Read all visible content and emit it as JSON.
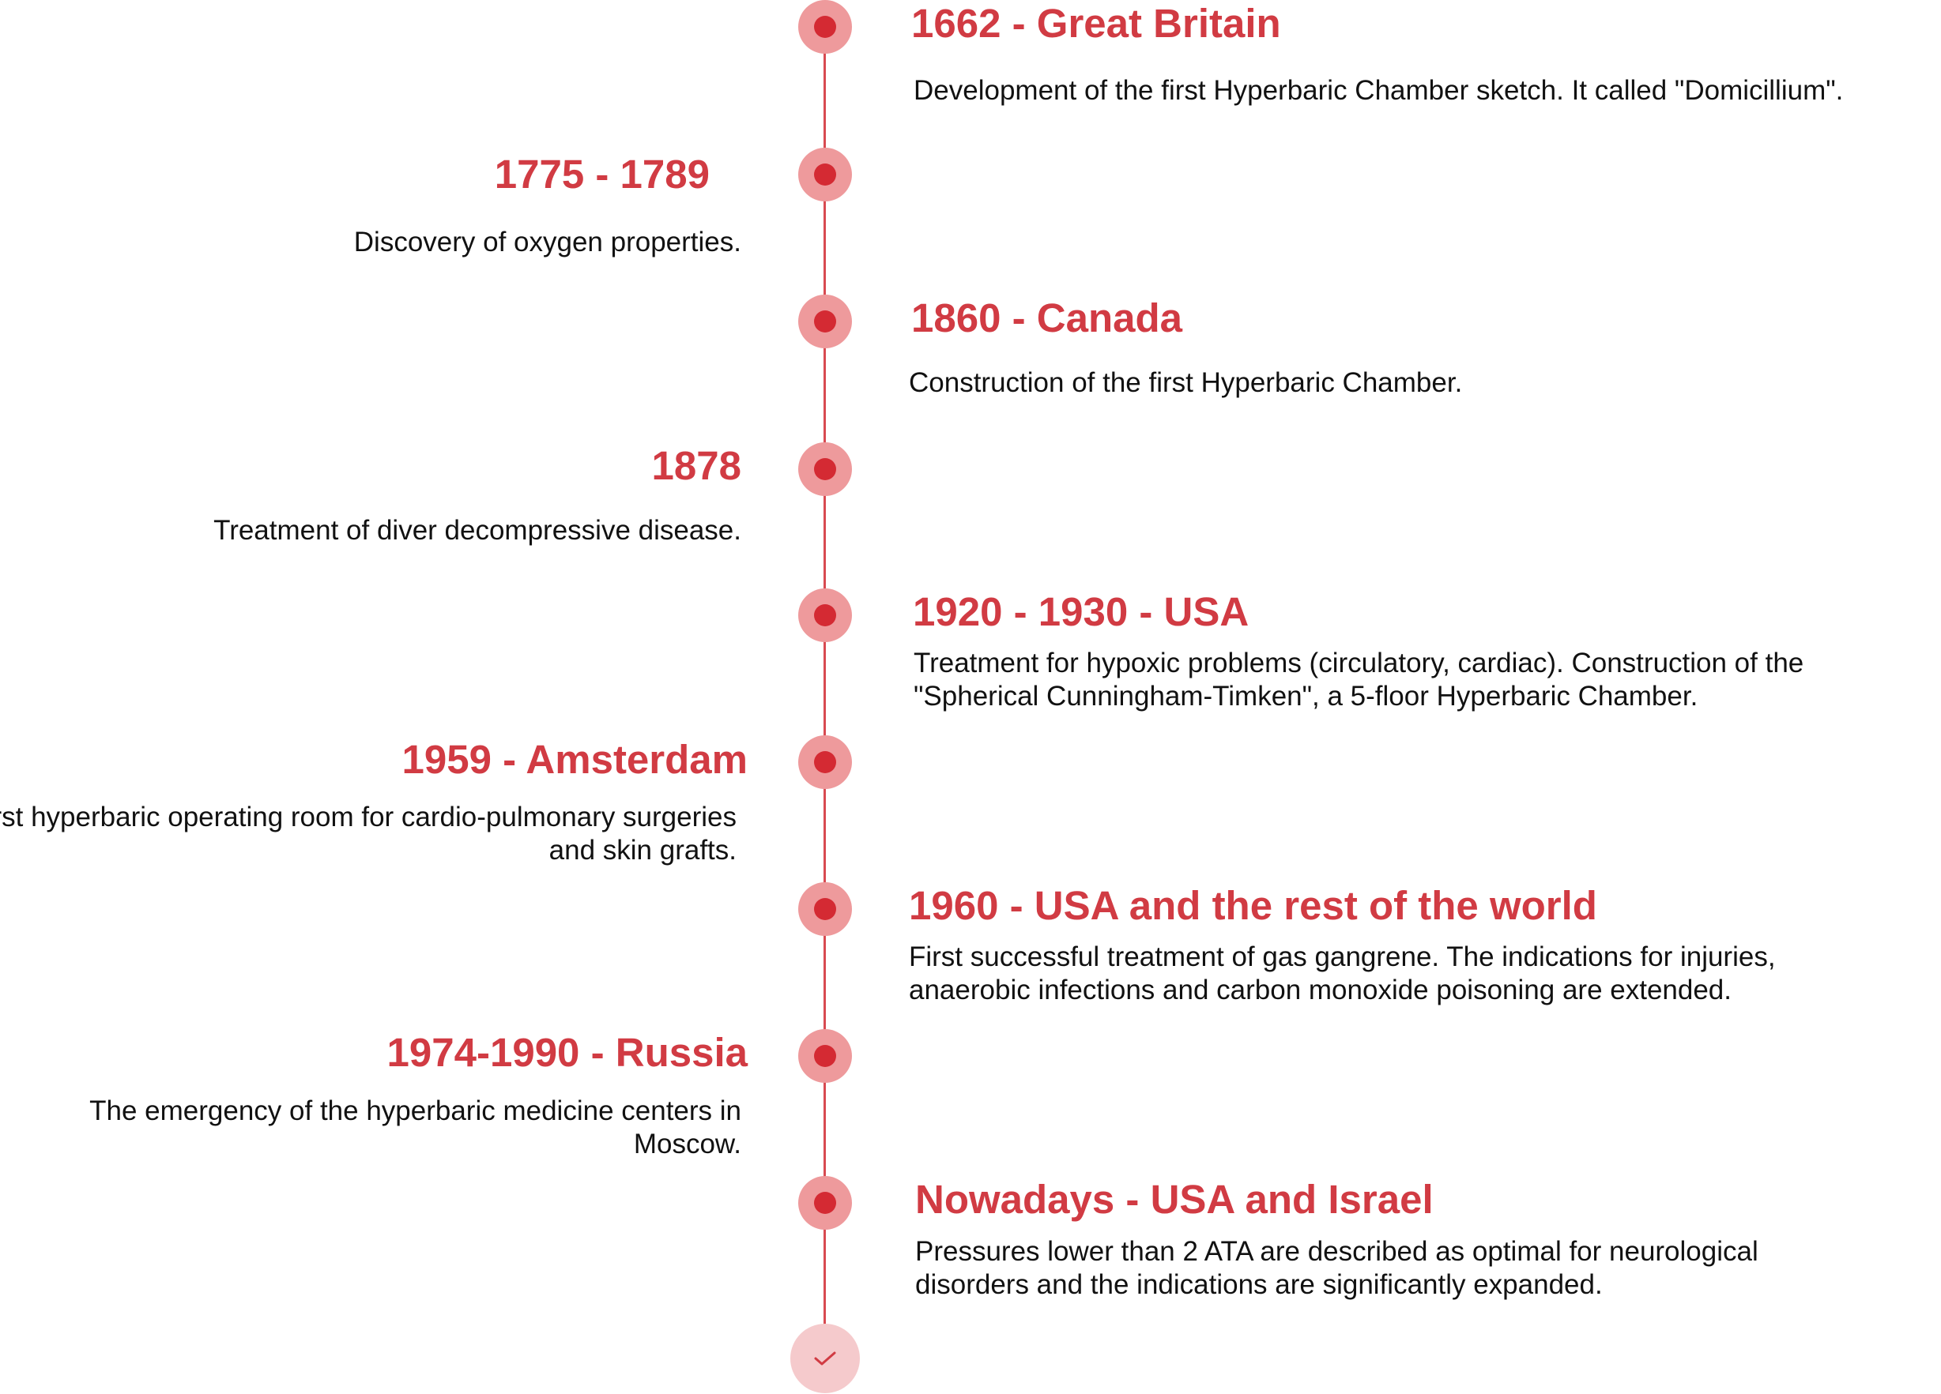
{
  "colors": {
    "accent": "#d13b43",
    "line": "#d84a51",
    "node_outer": "#ee9a9c",
    "node_inner": "#d42a33",
    "end_node": "#f5cacc"
  },
  "events": [
    {
      "title": "1662 - Great Britain",
      "description": "Development of the first Hyperbaric Chamber sketch. It called \"Domicillium\"."
    },
    {
      "title": "1775 - 1789",
      "description": "Discovery of oxygen properties."
    },
    {
      "title": "1860 - Canada",
      "description": "Construction of the first Hyperbaric Chamber."
    },
    {
      "title": "1878",
      "description": "Treatment of diver decompressive disease."
    },
    {
      "title": "1920 - 1930 - USA",
      "description": "Treatment for hypoxic problems (circulatory, cardiac). Construction of the \"Spherical Cunningham-Timken\", a 5-floor Hyperbaric Chamber."
    },
    {
      "title": "1959 - Amsterdam",
      "description": "First hyperbaric operating room for cardio-pulmonary surgeries and skin grafts."
    },
    {
      "title": "1960 - USA and the rest of the world",
      "description": "First successful treatment of gas gangrene. The indications for injuries, anaerobic infections and carbon monoxide poisoning are extended."
    },
    {
      "title": "1974-1990 - Russia",
      "description": "The emergency of the hyperbaric medicine centers in Moscow."
    },
    {
      "title": "Nowadays - USA and Israel",
      "description": "Pressures lower than 2 ATA are described as optimal for neurological disorders and the indications are significantly expanded."
    }
  ],
  "end_marker": {
    "icon": "check-icon"
  }
}
